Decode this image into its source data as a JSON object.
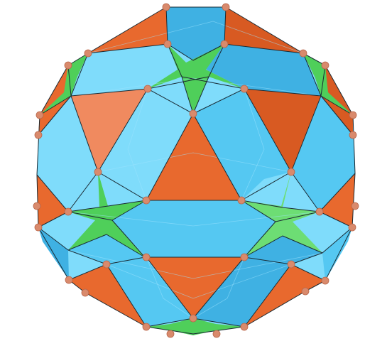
{
  "figure": {
    "subject": "",
    "colors": {
      "orange": "#e8692e",
      "blue": "#55c8f2",
      "green": "#4fcf5a",
      "vertex": "#d98a6c",
      "edge": "#1a2a33",
      "background": "#ffffff"
    }
  }
}
